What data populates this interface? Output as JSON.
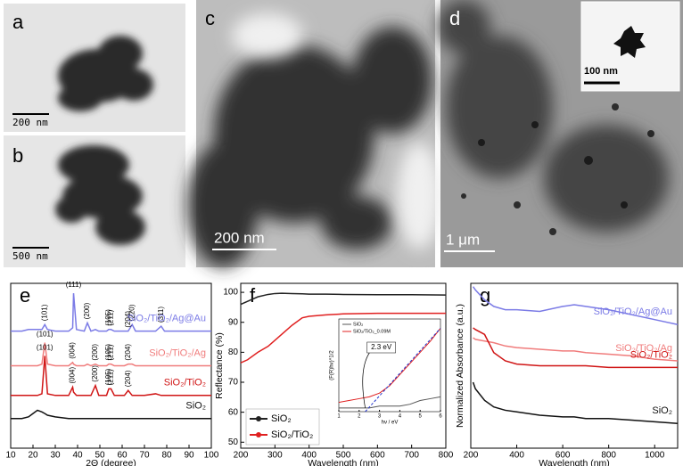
{
  "images": [
    {
      "panel": "a",
      "scale": "200 nm"
    },
    {
      "panel": "b",
      "scale": "500 nm"
    },
    {
      "panel": "c",
      "scale": "200 nm"
    },
    {
      "panel": "d",
      "scale": "1 μm",
      "inset_scale": "100 nm"
    }
  ],
  "chart_data": [
    {
      "type": "line",
      "panel": "e",
      "xlabel": "2Θ (degree)",
      "xlim": [
        10,
        100
      ],
      "xticks": [
        10,
        20,
        30,
        40,
        50,
        60,
        70,
        80,
        90,
        100
      ],
      "ylim": [
        0,
        100
      ],
      "x": [
        10,
        15,
        18,
        20,
        22,
        24,
        25.3,
        26.5,
        30,
        36,
        37.8,
        38.2,
        39.5,
        43,
        44.4,
        46,
        48,
        49.5,
        53,
        54,
        55,
        56.5,
        61,
        62.7,
        64.5,
        66,
        70,
        75,
        77.5,
        79,
        85,
        90,
        95,
        100
      ],
      "series": [
        {
          "name": "SiO₂/TiO₂/Ag@Au",
          "color": "#7b7be6",
          "values": [
            71,
            71,
            72,
            72,
            72,
            72,
            75,
            72,
            71,
            71,
            73,
            94,
            72,
            71,
            76,
            71,
            72,
            71,
            71,
            72,
            72,
            71,
            71,
            71,
            75,
            71,
            71,
            71,
            74,
            71,
            71,
            71,
            71,
            71
          ],
          "peak_labels": [
            {
              "x": 25.3,
              "label": "(101)"
            },
            {
              "x": 38.2,
              "label": "(111)"
            },
            {
              "x": 44.4,
              "label": "(200)"
            },
            {
              "x": 54,
              "label": "(105)"
            },
            {
              "x": 55,
              "label": "(211)"
            },
            {
              "x": 62.7,
              "label": "(204)"
            },
            {
              "x": 64.5,
              "label": "(220)"
            },
            {
              "x": 77.5,
              "label": "(311)"
            }
          ]
        },
        {
          "name": "SiO₂/TiO₂/Ag",
          "color": "#f07c7c",
          "values": [
            50,
            50,
            50,
            50,
            50,
            51,
            64,
            51,
            50,
            50,
            52,
            51,
            50,
            50,
            51,
            50,
            51,
            50,
            50,
            51,
            51,
            50,
            50,
            51,
            51,
            50,
            50,
            50,
            50,
            50,
            50,
            50,
            50,
            50
          ],
          "peak_labels": [
            {
              "x": 25.3,
              "label": "(101)"
            },
            {
              "x": 37.8,
              "label": "(004)"
            },
            {
              "x": 48,
              "label": "(200)"
            },
            {
              "x": 54,
              "label": "(105)"
            },
            {
              "x": 55,
              "label": "(211)"
            },
            {
              "x": 62.7,
              "label": "(204)"
            }
          ]
        },
        {
          "name": "SiO₂/TiO₂",
          "color": "#d01515",
          "values": [
            32,
            32,
            32,
            32,
            32,
            33,
            56,
            33,
            32,
            32,
            37,
            34,
            32,
            32,
            32,
            32,
            38,
            32,
            32,
            36,
            36,
            32,
            32,
            35,
            32,
            32,
            32,
            33,
            32,
            32,
            32,
            32,
            32,
            32
          ],
          "peak_labels": [
            {
              "x": 25.3,
              "label": "(101)"
            },
            {
              "x": 37.8,
              "label": "(004)"
            },
            {
              "x": 48,
              "label": "(200)"
            },
            {
              "x": 54,
              "label": "(105)"
            },
            {
              "x": 55,
              "label": "(211)"
            },
            {
              "x": 62.7,
              "label": "(204)"
            }
          ]
        },
        {
          "name": "SiO₂",
          "color": "#111111",
          "values": [
            18,
            18,
            19,
            21,
            23,
            22,
            21,
            20,
            19,
            18,
            18,
            18,
            18,
            18,
            18,
            18,
            18,
            18,
            18,
            18,
            18,
            18,
            18,
            18,
            18,
            18,
            18,
            18,
            18,
            18,
            18,
            18,
            18,
            18
          ]
        }
      ]
    },
    {
      "type": "line",
      "panel": "f",
      "xlabel": "Wavelength (nm)",
      "ylabel": "Reflectance (%)",
      "xlim": [
        200,
        800
      ],
      "xticks": [
        200,
        300,
        400,
        500,
        600,
        700,
        800
      ],
      "ylim": [
        48,
        103
      ],
      "yticks": [
        50,
        60,
        70,
        80,
        90,
        100
      ],
      "legend": "lower-left",
      "x": [
        200,
        220,
        250,
        280,
        300,
        320,
        350,
        380,
        400,
        450,
        500,
        600,
        700,
        800
      ],
      "series": [
        {
          "name": "SiO₂",
          "color": "#222222",
          "values": [
            96,
            97,
            98.5,
            99.3,
            99.6,
            99.7,
            99.6,
            99.5,
            99.4,
            99.4,
            99.3,
            99.2,
            99.2,
            99.1
          ]
        },
        {
          "name": "SiO₂/TiO₂",
          "color": "#e02020",
          "values": [
            76.5,
            77.5,
            80,
            82,
            84,
            86,
            89,
            91.5,
            92,
            92.5,
            92.8,
            93,
            93,
            93
          ]
        }
      ],
      "inset": {
        "xlabel": "hν / eV",
        "ylabel": "(F(R)hν)^1/2",
        "xlim": [
          1,
          6
        ],
        "xticks": [
          1,
          2,
          3,
          4,
          5,
          6
        ],
        "ylim": [
          0,
          0.5
        ],
        "x": [
          1,
          1.5,
          2,
          2.5,
          3,
          3.5,
          4,
          4.5,
          5,
          5.5,
          6
        ],
        "series": [
          {
            "name": "SiO₂",
            "color": "#555555",
            "values": [
              0.02,
              0.02,
              0.02,
              0.02,
              0.03,
              0.03,
              0.03,
              0.04,
              0.06,
              0.07,
              0.08
            ]
          },
          {
            "name": "SiO₂/TiO₂_0.09M",
            "color": "#e02020",
            "values": [
              0.05,
              0.06,
              0.07,
              0.08,
              0.1,
              0.14,
              0.2,
              0.26,
              0.32,
              0.38,
              0.45
            ]
          }
        ],
        "annotation": {
          "value": 2.3,
          "label": "2.3 eV"
        }
      }
    },
    {
      "type": "line",
      "panel": "g",
      "xlabel": "Wavelength (nm)",
      "ylabel": "Normalized Absorbance (a.u.)",
      "xlim": [
        200,
        1100
      ],
      "xticks": [
        200,
        400,
        600,
        800,
        1000
      ],
      "ylim": [
        0,
        100
      ],
      "x": [
        210,
        220,
        260,
        300,
        350,
        400,
        500,
        600,
        650,
        700,
        800,
        900,
        1000,
        1100
      ],
      "series": [
        {
          "name": "SiO₂/TiO₂/Ag@Au",
          "color": "#7b7be6",
          "values": [
            98,
            96,
            90,
            86,
            84,
            84,
            83,
            86,
            87,
            86,
            84,
            81,
            78,
            75
          ]
        },
        {
          "name": "SiO₂/TiO₂/Ag",
          "color": "#f07c7c",
          "values": [
            67,
            66,
            65,
            64,
            62,
            61,
            60,
            59,
            59,
            58,
            57,
            56,
            54,
            53
          ]
        },
        {
          "name": "SiO₂/TiO₂",
          "color": "#d01515",
          "values": [
            73,
            72,
            69,
            58,
            53,
            51,
            50,
            50,
            50,
            50,
            49,
            49,
            49,
            49
          ]
        },
        {
          "name": "SiO₂",
          "color": "#111111",
          "values": [
            40,
            36,
            29,
            25,
            23,
            22,
            20,
            19,
            19,
            18,
            18,
            17,
            16,
            15
          ]
        }
      ]
    }
  ]
}
